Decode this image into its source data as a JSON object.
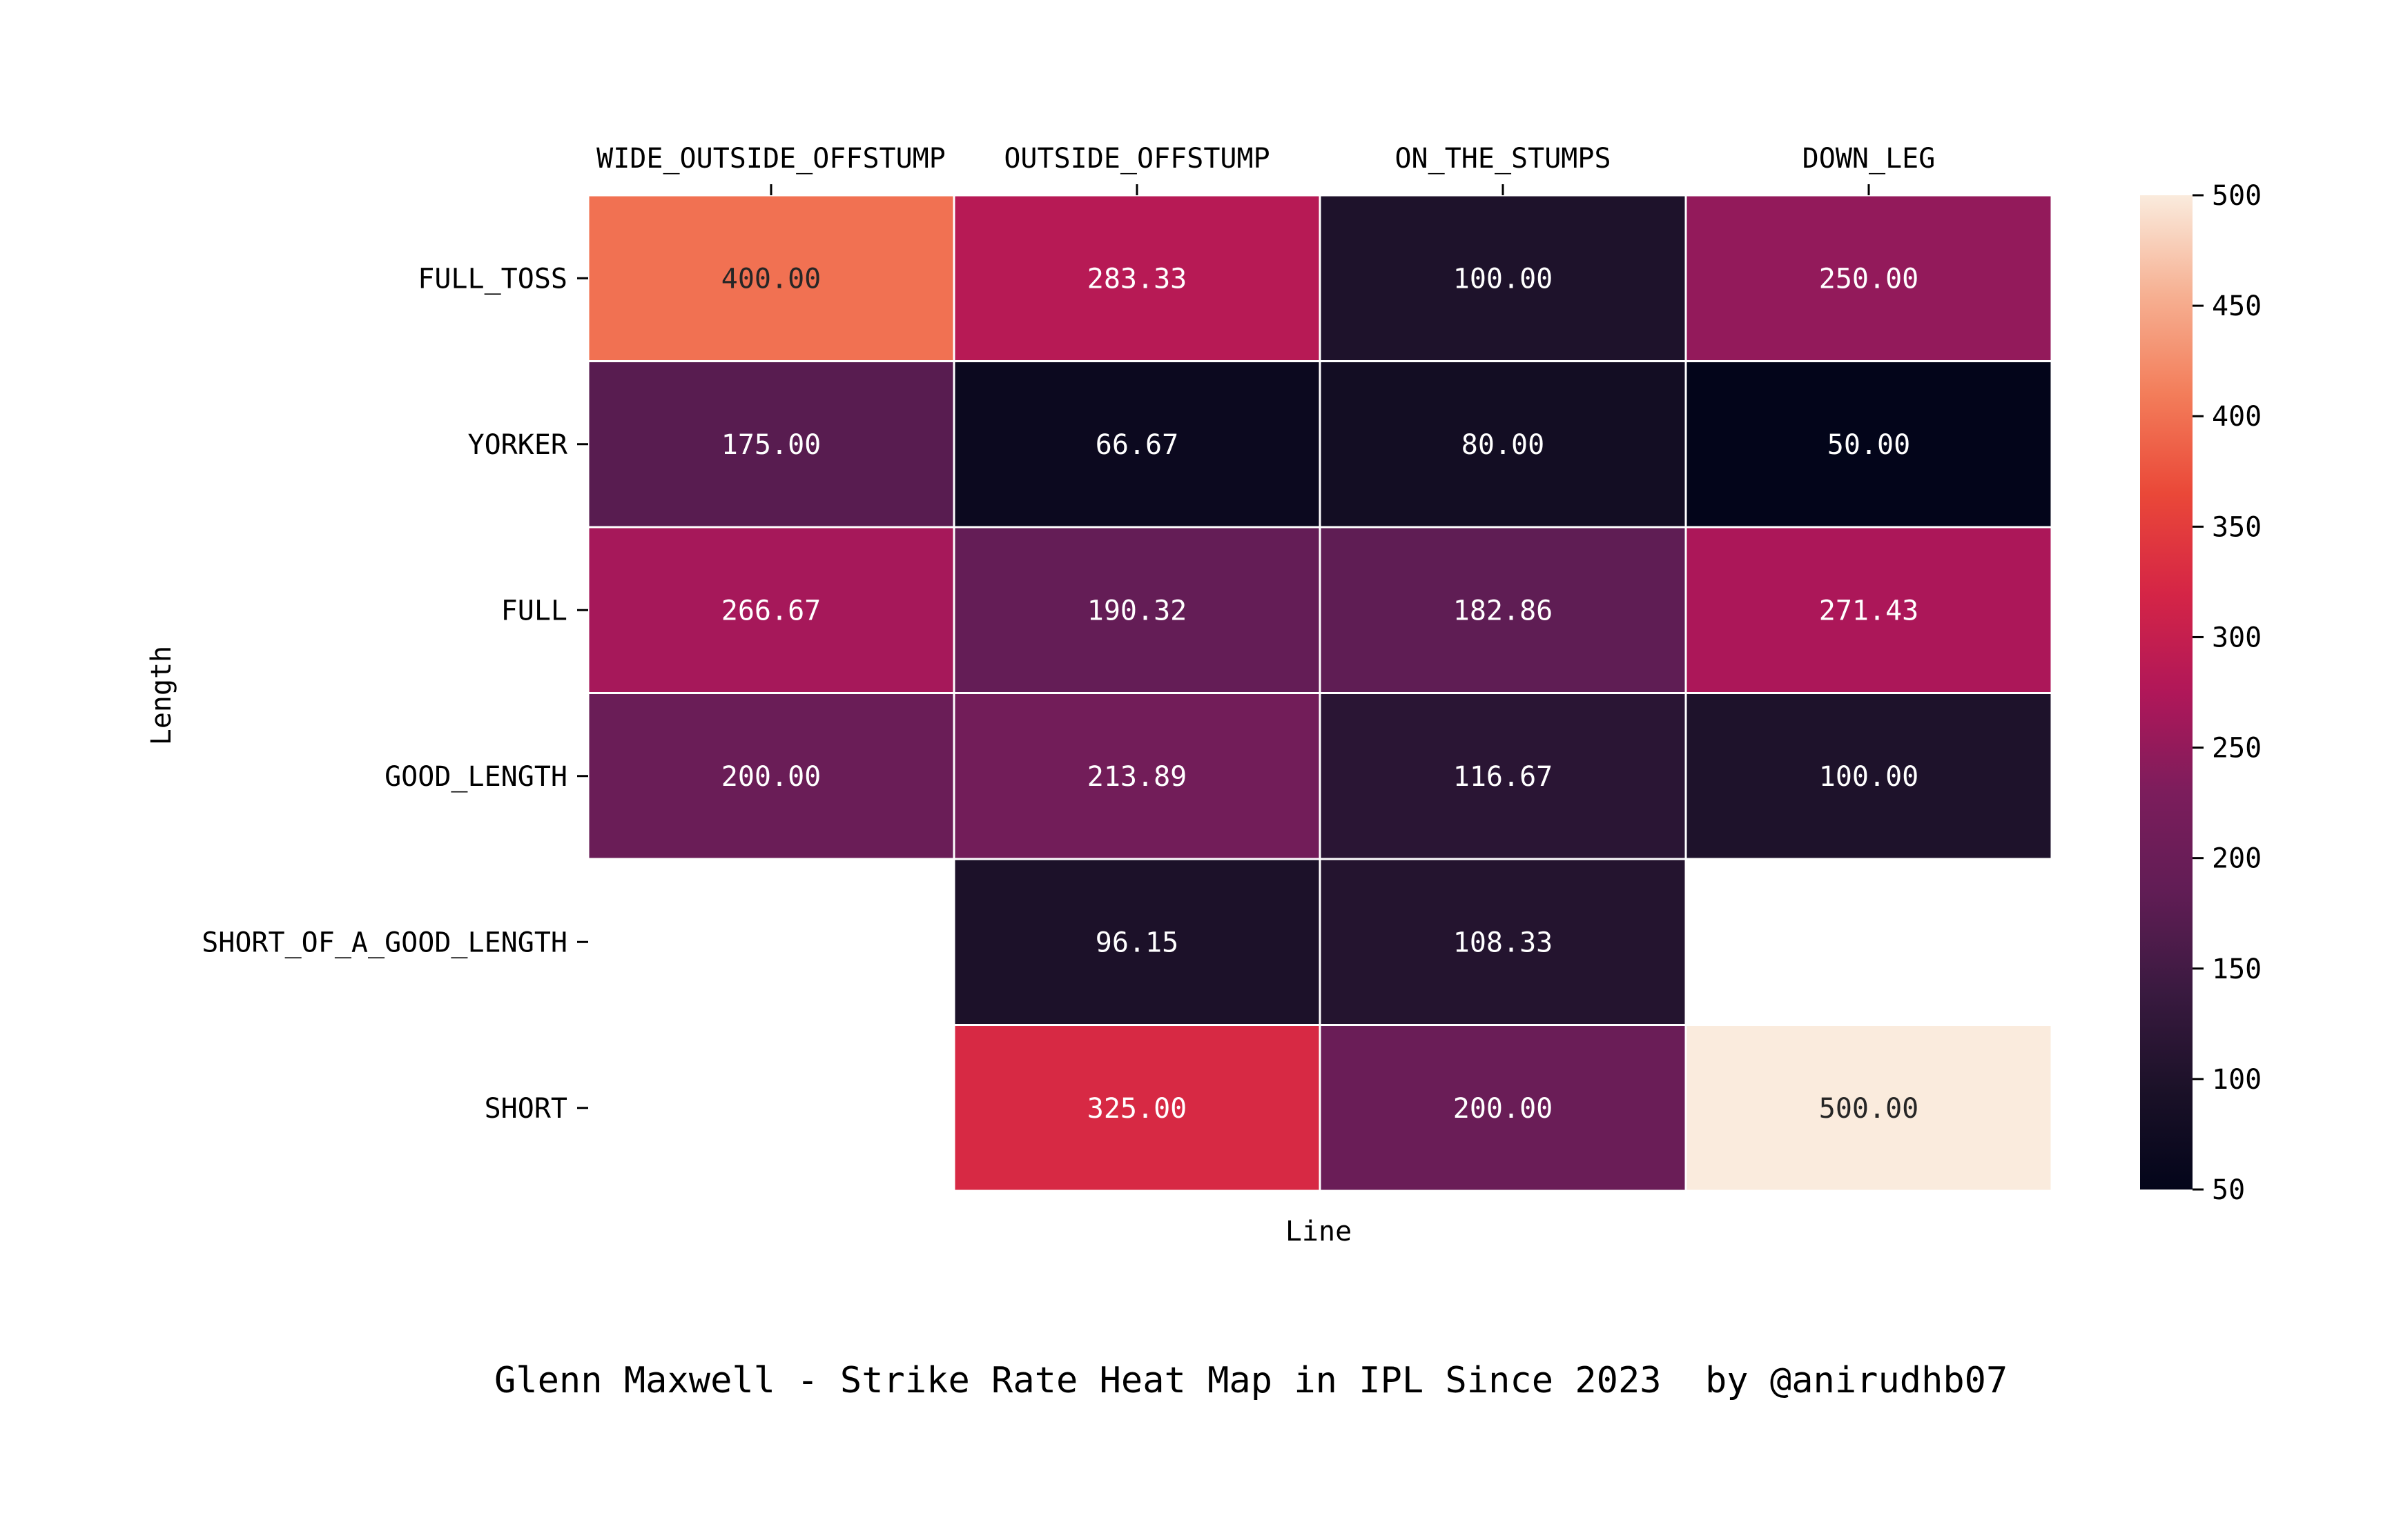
{
  "chart_data": {
    "type": "heatmap",
    "x_label": "Line",
    "y_label": "Length",
    "x_categories": [
      "WIDE_OUTSIDE_OFFSTUMP",
      "OUTSIDE_OFFSTUMP",
      "ON_THE_STUMPS",
      "DOWN_LEG"
    ],
    "y_categories": [
      "FULL_TOSS",
      "YORKER",
      "FULL",
      "GOOD_LENGTH",
      "SHORT_OF_A_GOOD_LENGTH",
      "SHORT"
    ],
    "values": [
      [
        400.0,
        283.33,
        100.0,
        250.0
      ],
      [
        175.0,
        66.67,
        80.0,
        50.0
      ],
      [
        266.67,
        190.32,
        182.86,
        271.43
      ],
      [
        200.0,
        213.89,
        116.67,
        100.0
      ],
      [
        null,
        96.15,
        108.33,
        null
      ],
      [
        null,
        325.0,
        200.0,
        500.0
      ]
    ],
    "value_format": "2 decimals",
    "colormap": "rocket",
    "vmin": 50,
    "vmax": 500,
    "colorbar_ticks": [
      50,
      100,
      150,
      200,
      250,
      300,
      350,
      400,
      450,
      500
    ],
    "x_tick_position": "top"
  },
  "footer": {
    "title": "Glenn Maxwell - Strike Rate Heat Map in IPL Since 2023",
    "credit": "by @anirudhb07"
  }
}
